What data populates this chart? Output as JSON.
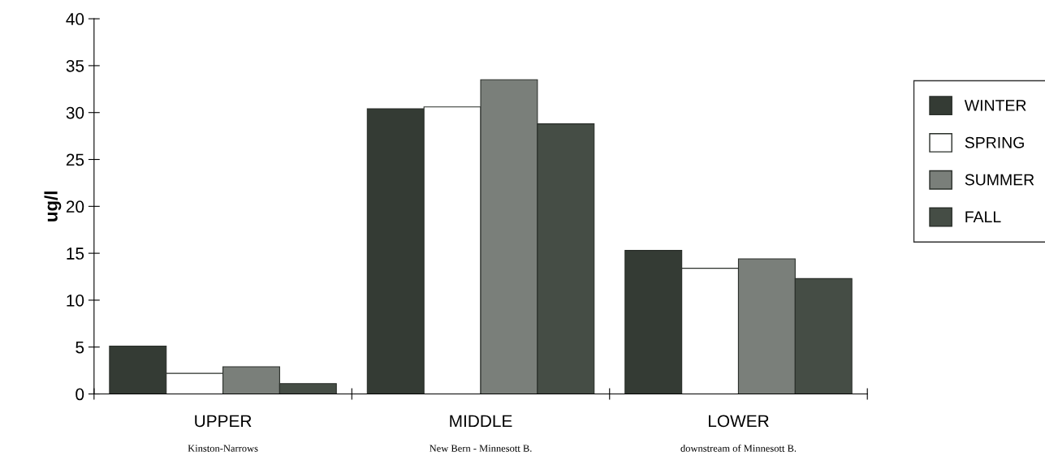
{
  "chart_data": {
    "type": "bar",
    "ylabel": "ug/l",
    "categories": [
      "UPPER",
      "MIDDLE",
      "LOWER"
    ],
    "series": [
      {
        "name": "WINTER",
        "color": "#343b34",
        "values": [
          5.1,
          30.4,
          15.3
        ]
      },
      {
        "name": "SPRING",
        "color": "#ffffff",
        "values": [
          2.2,
          30.6,
          13.4
        ]
      },
      {
        "name": "SUMMER",
        "color": "#7a7f7a",
        "values": [
          2.9,
          33.5,
          14.4
        ]
      },
      {
        "name": "FALL",
        "color": "#454d45",
        "values": [
          1.1,
          28.8,
          12.3
        ]
      }
    ],
    "ylim": [
      0,
      40
    ],
    "yticks": [
      0,
      5,
      10,
      15,
      20,
      25,
      30,
      35,
      40
    ],
    "annotations": [
      "Kinston-Narrows",
      "New Bern - Minnesott B.",
      "downstream of Minnesott B."
    ],
    "grid": false,
    "legend": "right"
  }
}
